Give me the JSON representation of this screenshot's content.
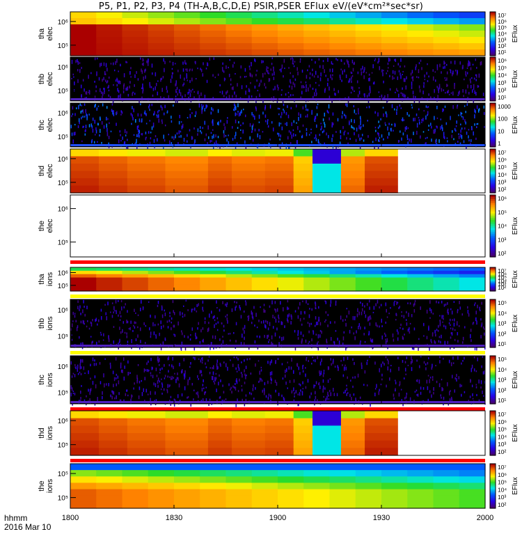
{
  "title": "P5, P1, P2, P3, P4 (TH-A,B,C,D,E) PSIR,PSER EFlux eV/(eV*cm²*sec*sr)",
  "x_axis": {
    "name": "hhmm",
    "date": "2016 Mar 10",
    "ticks": [
      "1800",
      "1830",
      "1900",
      "1930",
      "2000"
    ]
  },
  "colorbar_label": "EFlux",
  "chart_data": {
    "type": "heatmap",
    "x_range": [
      "18:00",
      "20:00"
    ],
    "x_ticks": [
      "1800",
      "1830",
      "1900",
      "1930",
      "2000"
    ],
    "panels": [
      {
        "id": "tha_elec",
        "ylabel": [
          "tha",
          "elec"
        ],
        "yticks": [
          "10⁶",
          "10⁵"
        ],
        "cbar_ticks": [
          "10⁷",
          "10⁶",
          "10⁵",
          "10⁴",
          "10³",
          "10²",
          "10¹"
        ],
        "pattern": "smooth_elec",
        "status_bar": false
      },
      {
        "id": "thb_elec",
        "ylabel": [
          "thb",
          "elec"
        ],
        "yticks": [
          "10⁶",
          "10⁵"
        ],
        "cbar_ticks": [
          "10⁶",
          "10⁵",
          "10⁴",
          "10³",
          "10²",
          "10¹"
        ],
        "pattern": "noise",
        "status_bar": false
      },
      {
        "id": "thc_elec",
        "ylabel": [
          "thc",
          "elec"
        ],
        "yticks": [
          "10⁶",
          "10⁵"
        ],
        "cbar_ticks": [
          "1000",
          "100",
          "10",
          "1"
        ],
        "pattern": "noise_blue",
        "status_bar": false
      },
      {
        "id": "thd_elec",
        "ylabel": [
          "thd",
          "elec"
        ],
        "yticks": [
          "10⁶",
          "10⁵"
        ],
        "cbar_ticks": [
          "10⁷",
          "10⁶",
          "10⁵",
          "10⁴",
          "10³",
          "10²"
        ],
        "pattern": "thd",
        "status_bar": false
      },
      {
        "id": "the_elec",
        "ylabel": [
          "the",
          "elec"
        ],
        "yticks": [
          "10⁶",
          "10⁵"
        ],
        "cbar_ticks": [
          "10⁶",
          "10⁵",
          "10⁴",
          "10³",
          "10²"
        ],
        "pattern": "empty",
        "status_bar": true
      },
      {
        "id": "tha_ions",
        "ylabel": [
          "tha",
          "ions"
        ],
        "yticks": [
          "10⁶",
          "10⁵"
        ],
        "cbar_ticks": [
          "10⁷",
          "10⁶",
          "10⁵",
          "10⁴",
          "10³",
          "10²"
        ],
        "pattern": "smooth_ions",
        "status_bar": true
      },
      {
        "id": "thb_ions",
        "ylabel": [
          "thb",
          "ions"
        ],
        "yticks": [
          "10⁶",
          "10⁵"
        ],
        "cbar_ticks": [
          "10⁵",
          "10⁴",
          "10³",
          "10²",
          "10¹"
        ],
        "pattern": "noise",
        "status_bar": true
      },
      {
        "id": "thc_ions",
        "ylabel": [
          "thc",
          "ions"
        ],
        "yticks": [
          "10⁶",
          "10⁵"
        ],
        "cbar_ticks": [
          "10⁵",
          "10⁴",
          "10³",
          "10²",
          "10¹"
        ],
        "pattern": "noise",
        "status_bar": true
      },
      {
        "id": "thd_ions",
        "ylabel": [
          "thd",
          "ions"
        ],
        "yticks": [
          "10⁶",
          "10⁵"
        ],
        "cbar_ticks": [
          "10⁷",
          "10⁶",
          "10⁵",
          "10⁴",
          "10³",
          "10²"
        ],
        "pattern": "thd",
        "status_bar": true
      },
      {
        "id": "the_ions",
        "ylabel": [
          "the",
          "ions"
        ],
        "yticks": [
          "10⁵",
          "10⁵"
        ],
        "cbar_ticks": [
          "10⁷",
          "10⁶",
          "10⁵",
          "10⁴",
          "10³",
          "10²"
        ],
        "pattern": "smooth_the",
        "status_bar": false
      }
    ]
  }
}
